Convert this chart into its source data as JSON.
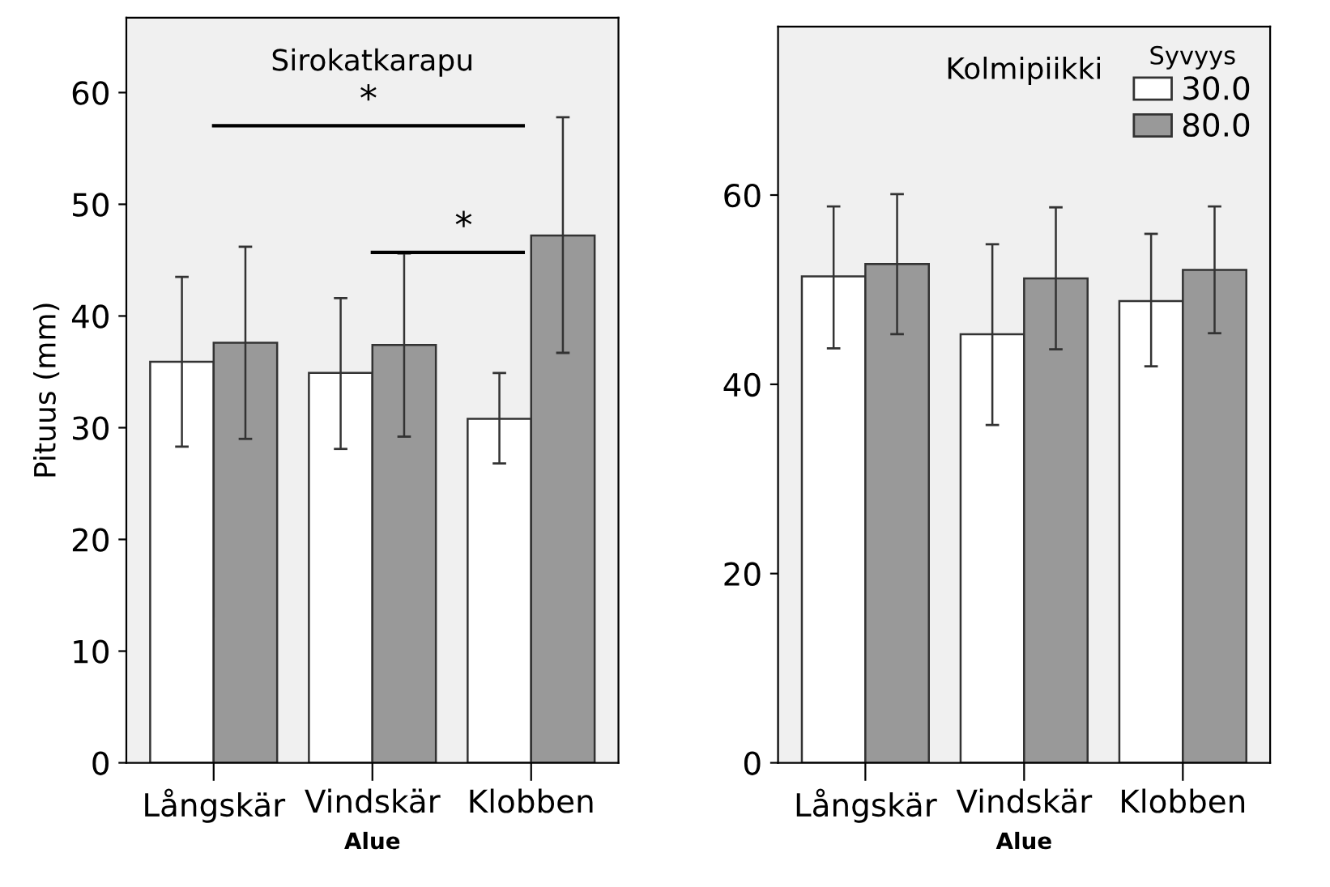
{
  "chart_data": [
    {
      "type": "bar",
      "title": "Sirokatkarapu",
      "xlabel": "Alue",
      "ylabel": "Pituus (mm)",
      "categories": [
        "Långskär",
        "Vindskär",
        "Klobben"
      ],
      "series": [
        {
          "color": "#ffffff",
          "values": [
            35.9,
            34.9,
            30.8
          ],
          "errors": [
            [
              28.3,
              43.5
            ],
            [
              28.1,
              41.6
            ],
            [
              26.8,
              34.9
            ]
          ]
        },
        {
          "color": "#999999",
          "values": [
            37.6,
            37.4,
            47.2
          ],
          "errors": [
            [
              29.0,
              46.2
            ],
            [
              29.2,
              45.6
            ],
            [
              36.7,
              57.8
            ]
          ]
        }
      ],
      "ylim": [
        0,
        66.7
      ],
      "yticks": [
        0,
        10,
        20,
        30,
        40,
        50,
        60
      ],
      "grid": false,
      "legend": false,
      "annotations": [
        "*",
        "*"
      ]
    },
    {
      "type": "bar",
      "title": "Kolmipiikki",
      "xlabel": "Alue",
      "legend_title": "Syvyys",
      "categories": [
        "Långskär",
        "Vindskär",
        "Klobben"
      ],
      "series": [
        {
          "name": "30.0",
          "color": "#ffffff",
          "values": [
            51.4,
            45.3,
            48.8
          ],
          "errors": [
            [
              43.8,
              58.8
            ],
            [
              35.7,
              54.8
            ],
            [
              41.9,
              55.9
            ]
          ]
        },
        {
          "name": "80.0",
          "color": "#999999",
          "values": [
            52.7,
            51.2,
            52.1
          ],
          "errors": [
            [
              45.3,
              60.1
            ],
            [
              43.7,
              58.7
            ],
            [
              45.4,
              58.8
            ]
          ]
        }
      ],
      "ylim": [
        0,
        77.8
      ],
      "yticks": [
        0,
        20,
        40,
        60
      ],
      "grid": false,
      "legend": "top right"
    }
  ]
}
